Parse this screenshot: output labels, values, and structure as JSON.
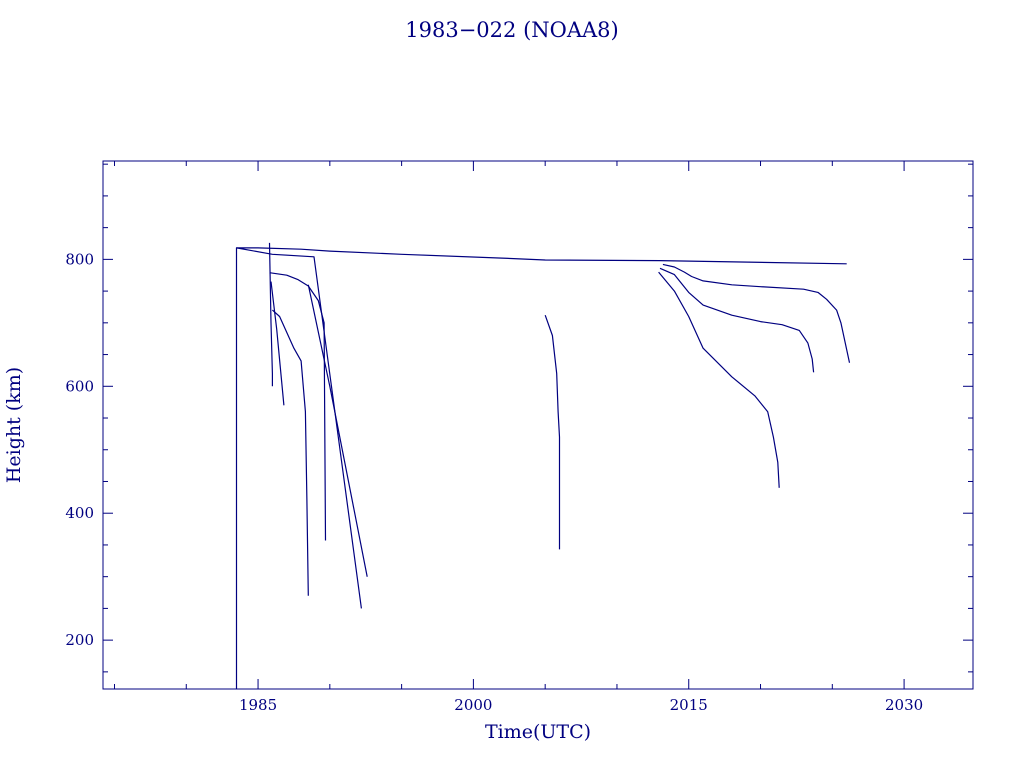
{
  "colors": {
    "ink": "#000080",
    "background": "#ffffff"
  },
  "chart_data": {
    "type": "line",
    "title": "1983−022 (NOAA8)",
    "xlabel": "Time(UTC)",
    "ylabel": "Height (km)",
    "xlim": [
      1974.2,
      2034.8
    ],
    "ylim": [
      123,
      955
    ],
    "x_ticks": [
      1985,
      2000,
      2015,
      2030
    ],
    "x_tick_labels": [
      "1985",
      "2000",
      "2015",
      "2030"
    ],
    "y_ticks": [
      200,
      400,
      600,
      800
    ],
    "y_tick_labels": [
      "200",
      "400",
      "600",
      "800"
    ],
    "x_minor_step": 5,
    "y_minor_step": 50,
    "grid": false,
    "legend": "none",
    "series": [
      {
        "x": [
          1983.5,
          1983.5,
          1985,
          1988,
          1990,
          1995,
          2002,
          2005,
          2013,
          2026
        ],
        "y": [
          123,
          818,
          818,
          816,
          813,
          808,
          802,
          799,
          798,
          793
        ]
      },
      {
        "x": [
          1983.5,
          1986,
          1988.9,
          1992.2
        ],
        "y": [
          818,
          808,
          804,
          250
        ]
      },
      {
        "x": [
          1985.8,
          1985.9,
          1986.0,
          1986.0
        ],
        "y": [
          826,
          700,
          620,
          600
        ]
      },
      {
        "x": [
          1985.9,
          1986.3,
          1986.8
        ],
        "y": [
          765,
          690,
          570
        ]
      },
      {
        "x": [
          1985.8,
          1987.0,
          1987.8,
          1988.5,
          1989.2,
          1989.6,
          1989.7
        ],
        "y": [
          779,
          775,
          768,
          758,
          735,
          700,
          357
        ]
      },
      {
        "x": [
          1986.0,
          1986.5,
          1987.5,
          1988.0,
          1988.3,
          1988.4,
          1988.5
        ],
        "y": [
          720,
          710,
          660,
          640,
          560,
          420,
          270
        ]
      },
      {
        "x": [
          1988.5,
          1990,
          1992.6
        ],
        "y": [
          760,
          600,
          300
        ]
      },
      {
        "x": [
          2005.0,
          2005.5,
          2005.8,
          2005.9,
          2006.0,
          2006.0
        ],
        "y": [
          712,
          680,
          620,
          560,
          520,
          343
        ]
      },
      {
        "x": [
          2013.2,
          2014,
          2014.7,
          2015.2,
          2016,
          2018,
          2020,
          2023,
          2024,
          2024.6,
          2025.3,
          2025.6,
          2026.2
        ],
        "y": [
          792,
          788,
          780,
          773,
          766,
          760,
          757,
          753,
          748,
          737,
          720,
          700,
          637
        ]
      },
      {
        "x": [
          2013.0,
          2014,
          2015,
          2016,
          2018,
          2020,
          2021.5,
          2022.7,
          2023.3,
          2023.6,
          2023.7
        ],
        "y": [
          786,
          776,
          748,
          728,
          712,
          702,
          697,
          688,
          668,
          643,
          622
        ]
      },
      {
        "x": [
          2012.9,
          2014,
          2015,
          2016,
          2018,
          2019.6,
          2020.5,
          2020.9,
          2021.2,
          2021.3
        ],
        "y": [
          780,
          750,
          710,
          660,
          615,
          585,
          560,
          520,
          480,
          440
        ]
      }
    ]
  }
}
